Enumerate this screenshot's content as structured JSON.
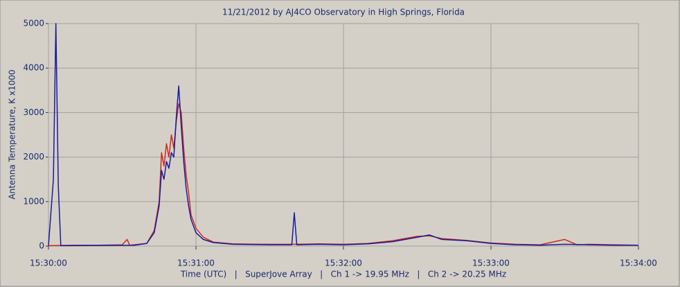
{
  "chart_data": {
    "type": "line",
    "title": "11/21/2012  by  AJ4CO Observatory  in  High Springs, Florida",
    "ylabel": "Antenna Temperature, K x1000",
    "xlabel": "Time (UTC)   |   SuperJove Array   |   Ch 1 -> 19.95 MHz   |   Ch 2 -> 20.25 MHz",
    "xlim": [
      "15:30:00",
      "15:34:00"
    ],
    "xticks": [
      "15:30:00",
      "15:31:00",
      "15:32:00",
      "15:33:00",
      "15:34:00"
    ],
    "ylim": [
      0,
      5000
    ],
    "yticks": [
      0,
      1000,
      2000,
      3000,
      4000,
      5000
    ],
    "grid": true,
    "series": [
      {
        "color": "#cc2a1a",
        "x": [
          "15:30:00",
          "15:30:10",
          "15:30:20",
          "15:30:30",
          "15:30:32",
          "15:30:33",
          "15:30:40",
          "15:30:43",
          "15:30:45",
          "15:30:46",
          "15:30:47",
          "15:30:48",
          "15:30:49",
          "15:30:50",
          "15:30:51",
          "15:30:52",
          "15:30:53",
          "15:30:54",
          "15:30:55",
          "15:30:56",
          "15:30:57",
          "15:30:58",
          "15:31:00",
          "15:31:03",
          "15:31:07",
          "15:31:15",
          "15:31:30",
          "15:31:40",
          "15:31:50",
          "15:32:00",
          "15:32:10",
          "15:32:20",
          "15:32:30",
          "15:32:35",
          "15:32:40",
          "15:32:50",
          "15:33:00",
          "15:33:10",
          "15:33:20",
          "15:33:30",
          "15:33:35",
          "15:33:40",
          "15:33:50",
          "15:34:00"
        ],
        "values": [
          10,
          20,
          20,
          30,
          150,
          20,
          60,
          350,
          1000,
          2100,
          1800,
          2300,
          2000,
          2500,
          2200,
          2800,
          3200,
          3000,
          2200,
          1600,
          1200,
          700,
          400,
          200,
          90,
          50,
          40,
          40,
          50,
          40,
          60,
          120,
          220,
          230,
          170,
          130,
          70,
          40,
          30,
          150,
          30,
          40,
          30,
          20
        ]
      },
      {
        "color": "#1a1a9c",
        "x": [
          "15:30:00",
          "15:30:02",
          "15:30:03",
          "15:30:04",
          "15:30:05",
          "15:30:20",
          "15:30:35",
          "15:30:40",
          "15:30:43",
          "15:30:45",
          "15:30:46",
          "15:30:47",
          "15:30:48",
          "15:30:49",
          "15:30:50",
          "15:30:51",
          "15:30:52",
          "15:30:53",
          "15:30:54",
          "15:30:55",
          "15:30:56",
          "15:30:57",
          "15:30:58",
          "15:31:00",
          "15:31:03",
          "15:31:07",
          "15:31:15",
          "15:31:30",
          "15:31:39",
          "15:31:40",
          "15:31:41",
          "15:31:50",
          "15:32:00",
          "15:32:10",
          "15:32:20",
          "15:32:30",
          "15:32:35",
          "15:32:40",
          "15:32:50",
          "15:33:00",
          "15:33:10",
          "15:33:20",
          "15:33:30",
          "15:33:40",
          "15:33:50",
          "15:34:00"
        ],
        "values": [
          10,
          1500,
          5000,
          1350,
          10,
          15,
          20,
          60,
          300,
          900,
          1700,
          1500,
          1900,
          1750,
          2100,
          2000,
          2900,
          3600,
          2700,
          1900,
          1300,
          900,
          600,
          300,
          150,
          80,
          40,
          30,
          30,
          750,
          30,
          40,
          30,
          50,
          100,
          200,
          250,
          150,
          120,
          60,
          30,
          20,
          40,
          30,
          20,
          20
        ]
      }
    ]
  }
}
